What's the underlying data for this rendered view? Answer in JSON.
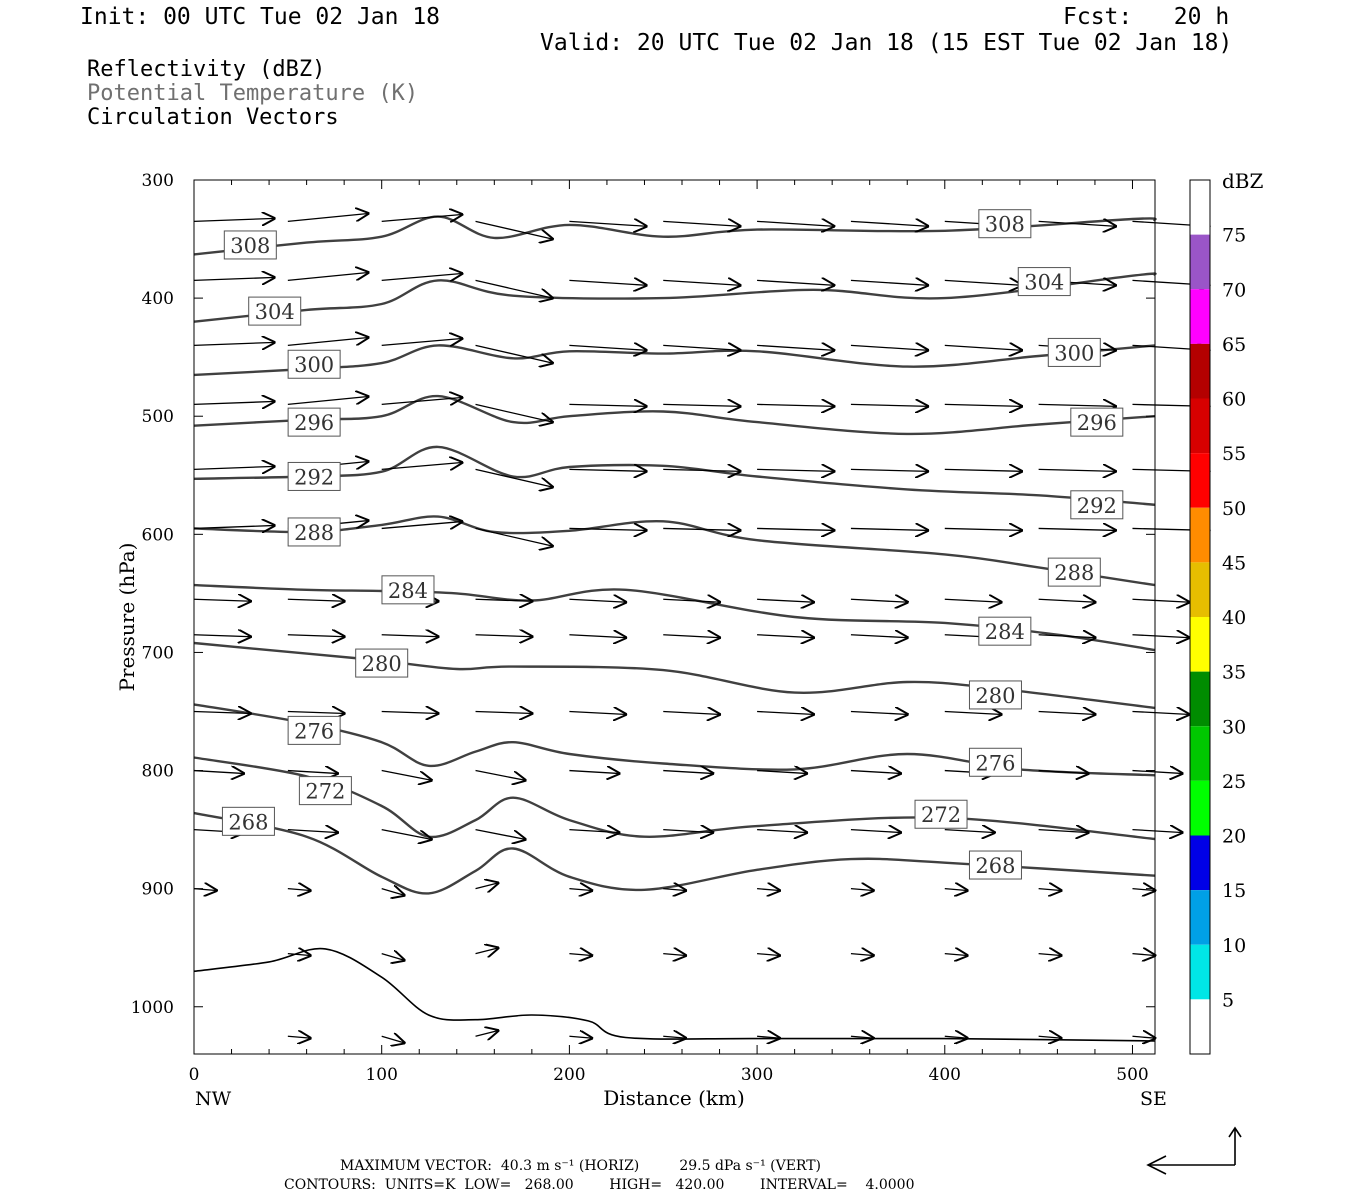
{
  "header": {
    "init": "Init: 00 UTC Tue 02 Jan 18",
    "fcst": "Fcst:   20 h",
    "valid": "Valid: 20 UTC Tue 02 Jan 18 (15 EST Tue 02 Jan 18)",
    "fields": [
      "Reflectivity (dBZ)",
      "Potential Temperature (K)",
      "Circulation Vectors"
    ]
  },
  "footer": {
    "max_vector": "MAXIMUM VECTOR:  40.3 m s⁻¹ (HORIZ)         29.5 dPa s⁻¹ (VERT)",
    "contours": "CONTOURS:  UNITS=K  LOW=   268.00        HIGH=   420.00        INTERVAL=    4.0000"
  },
  "colors": {
    "contour": "#404040",
    "vector": "#000000",
    "frame": "#000000"
  },
  "chart_data": {
    "type": "line",
    "xlabel": "Distance (km)",
    "ylabel": "Pressure (hPa)",
    "xlim": [
      0,
      512
    ],
    "ylim": [
      1040,
      300
    ],
    "x_ticks": [
      0,
      100,
      200,
      300,
      400,
      500
    ],
    "x_end_labels": [
      "NW",
      "SE"
    ],
    "y_ticks": [
      300,
      400,
      500,
      600,
      700,
      800,
      900,
      1000
    ],
    "colorbar": {
      "unit": "dBZ",
      "levels": [
        5,
        10,
        15,
        20,
        25,
        30,
        35,
        40,
        45,
        50,
        55,
        60,
        65,
        70,
        75
      ],
      "colors": [
        "#ffffff",
        "#00e6e6",
        "#00a0e6",
        "#0000e6",
        "#00ff00",
        "#00c800",
        "#008c00",
        "#ffff00",
        "#e6be00",
        "#ff8c00",
        "#ff0000",
        "#d70000",
        "#b40000",
        "#ff00ff",
        "#9a55c8",
        "#ffffff"
      ]
    },
    "isentropes": [
      {
        "value": 308,
        "labels": [
          [
            30,
            355
          ],
          [
            432,
            337
          ]
        ],
        "points": [
          [
            0,
            363
          ],
          [
            60,
            353
          ],
          [
            100,
            348
          ],
          [
            130,
            331
          ],
          [
            160,
            349
          ],
          [
            200,
            338
          ],
          [
            250,
            348
          ],
          [
            300,
            342
          ],
          [
            400,
            343
          ],
          [
            500,
            333
          ],
          [
            512,
            334
          ]
        ]
      },
      {
        "value": 304,
        "labels": [
          [
            43,
            411
          ],
          [
            453,
            386
          ]
        ],
        "points": [
          [
            0,
            420
          ],
          [
            60,
            410
          ],
          [
            100,
            405
          ],
          [
            130,
            385
          ],
          [
            170,
            398
          ],
          [
            250,
            400
          ],
          [
            330,
            393
          ],
          [
            400,
            400
          ],
          [
            500,
            381
          ],
          [
            512,
            380
          ]
        ]
      },
      {
        "value": 300,
        "labels": [
          [
            64,
            456
          ],
          [
            469,
            446
          ]
        ],
        "points": [
          [
            0,
            465
          ],
          [
            60,
            460
          ],
          [
            100,
            455
          ],
          [
            130,
            440
          ],
          [
            170,
            451
          ],
          [
            200,
            445
          ],
          [
            250,
            447
          ],
          [
            300,
            445
          ],
          [
            380,
            458
          ],
          [
            450,
            449
          ],
          [
            512,
            440
          ]
        ]
      },
      {
        "value": 296,
        "labels": [
          [
            64,
            505
          ],
          [
            481,
            505
          ]
        ],
        "points": [
          [
            0,
            508
          ],
          [
            60,
            503
          ],
          [
            100,
            500
          ],
          [
            130,
            483
          ],
          [
            170,
            505
          ],
          [
            200,
            500
          ],
          [
            250,
            496
          ],
          [
            300,
            505
          ],
          [
            380,
            515
          ],
          [
            450,
            507
          ],
          [
            512,
            500
          ]
        ]
      },
      {
        "value": 292,
        "labels": [
          [
            64,
            551
          ],
          [
            481,
            575
          ]
        ],
        "points": [
          [
            0,
            553
          ],
          [
            60,
            551
          ],
          [
            100,
            547
          ],
          [
            130,
            526
          ],
          [
            170,
            551
          ],
          [
            200,
            543
          ],
          [
            250,
            542
          ],
          [
            300,
            551
          ],
          [
            380,
            562
          ],
          [
            450,
            567
          ],
          [
            512,
            575
          ]
        ]
      },
      {
        "value": 288,
        "labels": [
          [
            64,
            598
          ],
          [
            469,
            632
          ]
        ],
        "points": [
          [
            0,
            595
          ],
          [
            60,
            598
          ],
          [
            100,
            592
          ],
          [
            130,
            585
          ],
          [
            160,
            598
          ],
          [
            200,
            597
          ],
          [
            250,
            589
          ],
          [
            300,
            605
          ],
          [
            400,
            617
          ],
          [
            450,
            628
          ],
          [
            512,
            643
          ]
        ]
      },
      {
        "value": 284,
        "labels": [
          [
            114,
            647
          ],
          [
            432,
            682
          ]
        ],
        "points": [
          [
            0,
            643
          ],
          [
            60,
            647
          ],
          [
            100,
            648
          ],
          [
            140,
            650
          ],
          [
            180,
            656
          ],
          [
            230,
            647
          ],
          [
            320,
            670
          ],
          [
            400,
            675
          ],
          [
            460,
            685
          ],
          [
            512,
            698
          ]
        ]
      },
      {
        "value": 280,
        "labels": [
          [
            100,
            709
          ],
          [
            427,
            736
          ]
        ],
        "points": [
          [
            0,
            692
          ],
          [
            60,
            701
          ],
          [
            100,
            707
          ],
          [
            140,
            714
          ],
          [
            170,
            712
          ],
          [
            250,
            715
          ],
          [
            320,
            734
          ],
          [
            380,
            725
          ],
          [
            430,
            731
          ],
          [
            512,
            747
          ]
        ]
      },
      {
        "value": 276,
        "labels": [
          [
            64,
            766
          ],
          [
            427,
            793
          ]
        ],
        "points": [
          [
            0,
            744
          ],
          [
            60,
            760
          ],
          [
            100,
            776
          ],
          [
            125,
            796
          ],
          [
            150,
            784
          ],
          [
            170,
            776
          ],
          [
            200,
            786
          ],
          [
            250,
            794
          ],
          [
            320,
            799
          ],
          [
            380,
            786
          ],
          [
            440,
            799
          ],
          [
            512,
            804
          ]
        ]
      },
      {
        "value": 272,
        "labels": [
          [
            70,
            817
          ],
          [
            398,
            837
          ]
        ],
        "points": [
          [
            0,
            789
          ],
          [
            60,
            805
          ],
          [
            100,
            830
          ],
          [
            125,
            856
          ],
          [
            150,
            842
          ],
          [
            170,
            823
          ],
          [
            200,
            842
          ],
          [
            240,
            856
          ],
          [
            300,
            847
          ],
          [
            400,
            840
          ],
          [
            512,
            858
          ]
        ]
      },
      {
        "value": 268,
        "labels": [
          [
            29,
            843
          ],
          [
            427,
            880
          ]
        ],
        "points": [
          [
            0,
            836
          ],
          [
            60,
            856
          ],
          [
            100,
            890
          ],
          [
            125,
            904
          ],
          [
            150,
            885
          ],
          [
            170,
            866
          ],
          [
            200,
            890
          ],
          [
            240,
            901
          ],
          [
            300,
            884
          ],
          [
            350,
            875
          ],
          [
            400,
            878
          ],
          [
            512,
            889
          ]
        ]
      }
    ],
    "terrain": [
      [
        0,
        970
      ],
      [
        40,
        962
      ],
      [
        70,
        951
      ],
      [
        100,
        975
      ],
      [
        125,
        1007
      ],
      [
        150,
        1011
      ],
      [
        180,
        1007
      ],
      [
        210,
        1012
      ],
      [
        230,
        1026
      ],
      [
        300,
        1027
      ],
      [
        400,
        1027
      ],
      [
        512,
        1029
      ]
    ]
  }
}
